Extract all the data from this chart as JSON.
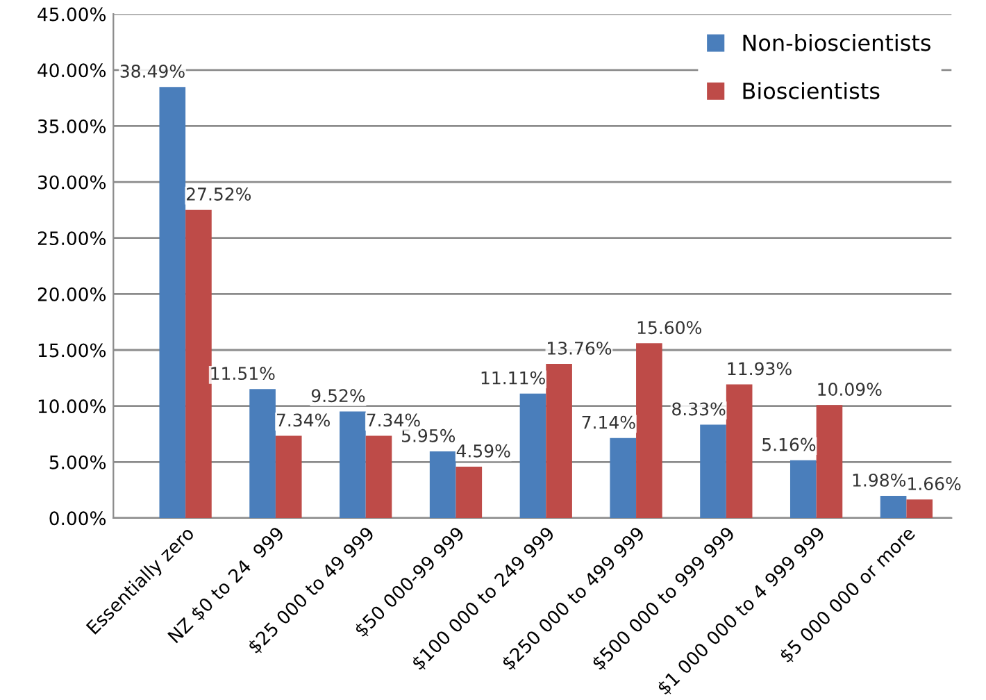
{
  "chart_data": {
    "type": "bar",
    "categories": [
      "Essentially zero",
      "NZ $0 to 24  999",
      "$25 000 to 49 999",
      "$50 000-99 999",
      "$100 000 to 249 999",
      "$250 000 to 499 999",
      "$500 000 to 999 999",
      "$1 000 000 to 4 999 999",
      "$5 000 000 or more"
    ],
    "series": [
      {
        "name": "Non-bioscientists",
        "color": "#4a7ebb",
        "values": [
          38.49,
          11.51,
          9.52,
          5.95,
          11.11,
          7.14,
          8.33,
          5.16,
          1.98
        ],
        "value_labels": [
          "38.49%",
          "11.51%",
          "9.52%",
          "5.95%",
          "11.11%",
          "7.14%",
          "8.33%",
          "5.16%",
          "1.98%"
        ]
      },
      {
        "name": "Bioscientists",
        "color": "#be4b48",
        "values": [
          27.52,
          7.34,
          7.34,
          4.59,
          13.76,
          15.6,
          11.93,
          10.09,
          1.66
        ],
        "value_labels": [
          "27.52%",
          "7.34%",
          "7.34%",
          "4.59%",
          "13.76%",
          "15.60%",
          "11.93%",
          "10.09%",
          "1.66%"
        ]
      }
    ],
    "ylim": [
      0,
      45
    ],
    "yticks": [
      {
        "value": 0,
        "label": "0.00%"
      },
      {
        "value": 5,
        "label": "5.00%"
      },
      {
        "value": 10,
        "label": "10.00%"
      },
      {
        "value": 15,
        "label": "15.00%"
      },
      {
        "value": 20,
        "label": "20.00%"
      },
      {
        "value": 25,
        "label": "25.00%"
      },
      {
        "value": 30,
        "label": "30.00%"
      },
      {
        "value": 35,
        "label": "35.00%"
      },
      {
        "value": 40,
        "label": "40.00%"
      },
      {
        "value": 45,
        "label": "45.00%"
      }
    ],
    "grid": "y",
    "legend": "top right"
  }
}
